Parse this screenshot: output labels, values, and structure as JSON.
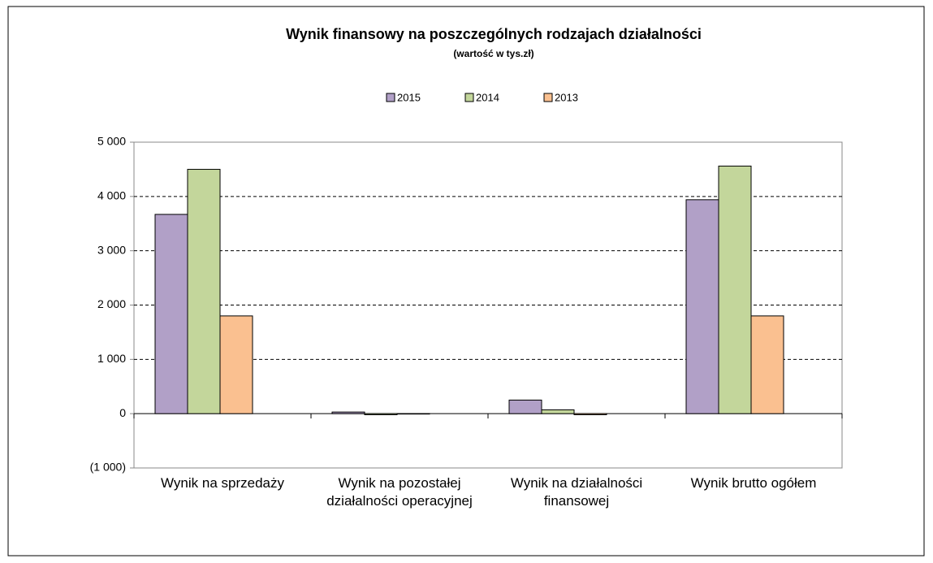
{
  "chart_data": {
    "type": "bar",
    "title": "Wynik finansowy na poszczególnych rodzajach działalności",
    "subtitle": "(wartość w tys.zł)",
    "categories": [
      "Wynik na sprzedaży",
      "Wynik na pozostałej działalności operacyjnej",
      "Wynik na działalności finansowej",
      "Wynik brutto ogółem"
    ],
    "series": [
      {
        "name": "2015",
        "color": "#b1a0c7",
        "values": [
          3670,
          30,
          250,
          3940
        ]
      },
      {
        "name": "2014",
        "color": "#c3d69b",
        "values": [
          4500,
          -20,
          70,
          4560
        ]
      },
      {
        "name": "2013",
        "color": "#fac090",
        "values": [
          1800,
          0,
          -20,
          1800
        ]
      }
    ],
    "ylim": [
      -1000,
      5000
    ],
    "yticks": [
      {
        "value": -1000,
        "label": "(1 000)"
      },
      0,
      {
        "value": 1000,
        "label": "1 000"
      },
      {
        "value": 2000,
        "label": "2 000"
      },
      {
        "value": 3000,
        "label": "3 000"
      },
      {
        "value": 4000,
        "label": "4 000"
      },
      {
        "value": 5000,
        "label": "5 000"
      }
    ],
    "grid": true
  }
}
